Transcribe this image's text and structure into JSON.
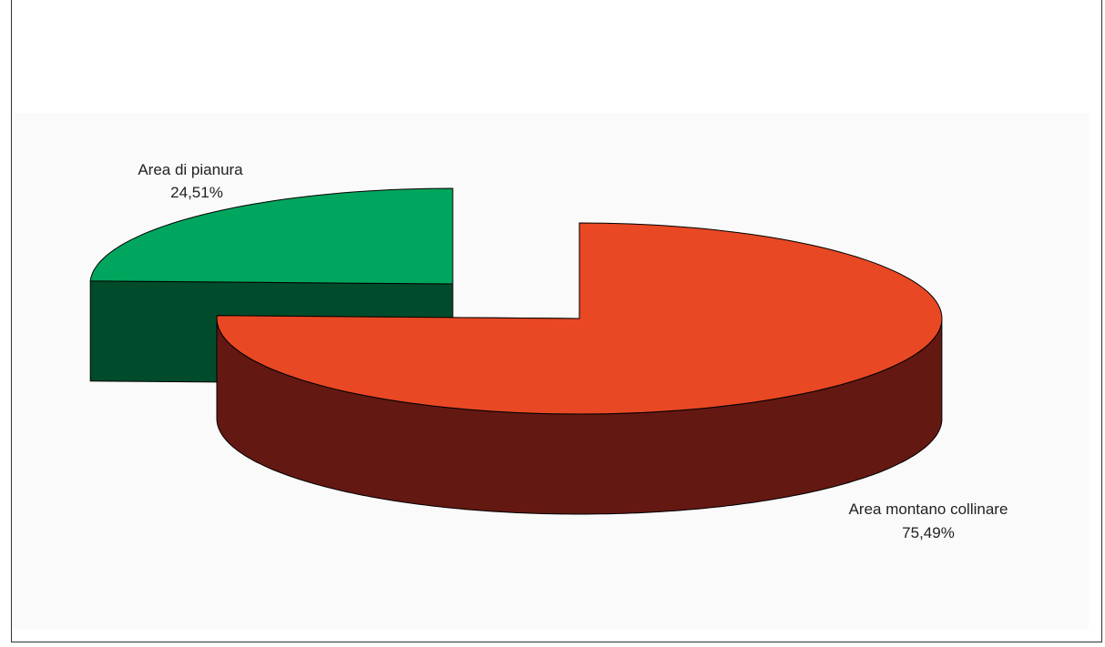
{
  "chart_data": {
    "type": "pie",
    "style": "3d-exploded",
    "title": "",
    "slices": [
      {
        "label": "Area montano collinare",
        "value": 75.49,
        "value_text": "75,49%",
        "top_color": "#e84824",
        "side_color": "#641812"
      },
      {
        "label": "Area di pianura",
        "value": 24.51,
        "value_text": "24,51%",
        "top_color": "#00a65d",
        "side_color": "#004b2b"
      }
    ]
  },
  "colors": {
    "background": "#ffffff",
    "plot_background": "#fafafa",
    "outline": "#000000",
    "label_text": "#222222"
  }
}
